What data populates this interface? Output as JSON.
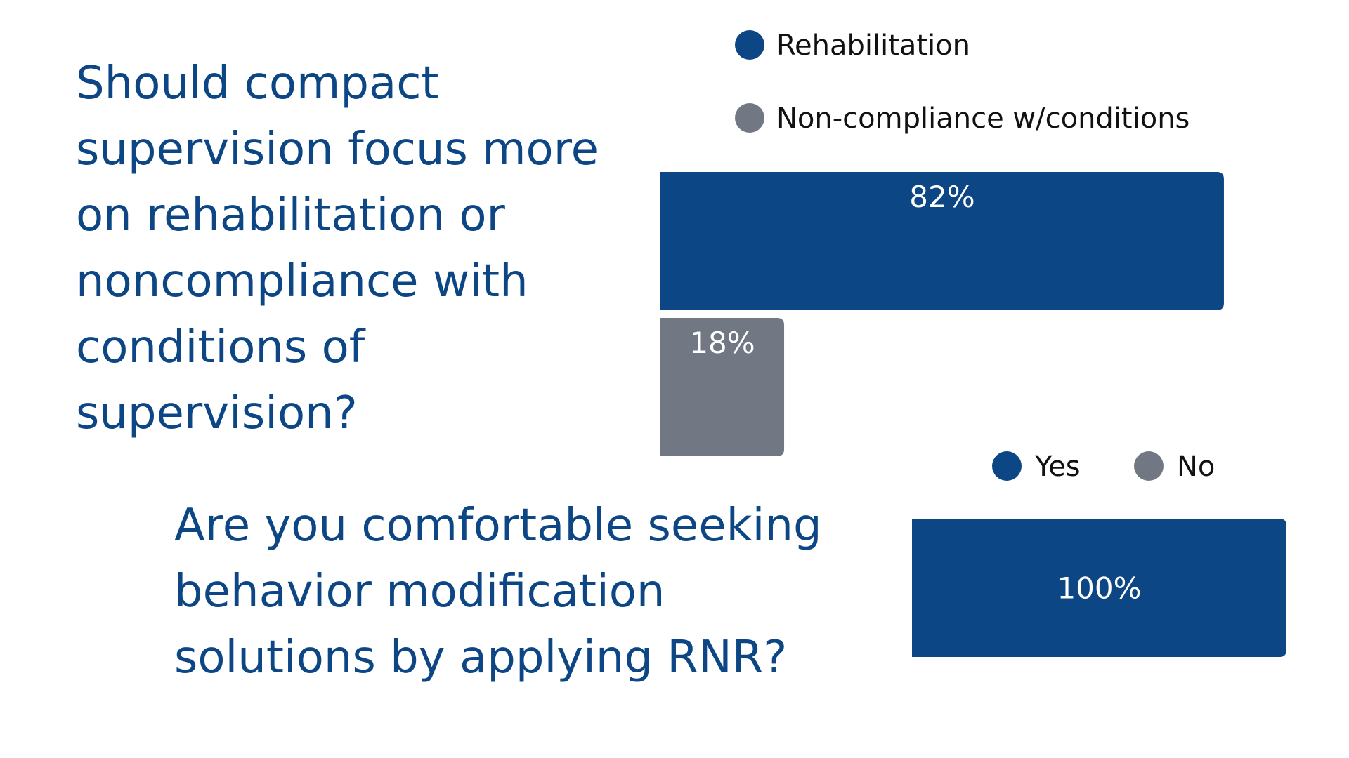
{
  "colors": {
    "primary": "#0d4684",
    "secondary": "#717783",
    "text": "#111111",
    "background": "#ffffff"
  },
  "chart_data": [
    {
      "type": "bar",
      "orientation": "horizontal",
      "question": [
        "Should compact",
        "supervision focus more",
        "on rehabilitation or",
        "noncompliance with",
        "conditions of",
        "supervision?"
      ],
      "series": [
        {
          "name": "Rehabilitation",
          "value": 82,
          "label": "82%",
          "color": "#0d4684"
        },
        {
          "name": "Non-compliance w/conditions",
          "value": 18,
          "label": "18%",
          "color": "#717783"
        }
      ],
      "xlim": [
        0,
        100
      ],
      "legend_position": "top",
      "grid": false
    },
    {
      "type": "bar",
      "orientation": "horizontal",
      "question": [
        "Are you comfortable seeking",
        "behavior modification",
        "solutions by applying RNR?"
      ],
      "series": [
        {
          "name": "Yes",
          "value": 100,
          "label": "100%",
          "color": "#0d4684"
        },
        {
          "name": "No",
          "value": 0,
          "label": "",
          "color": "#717783"
        }
      ],
      "xlim": [
        0,
        100
      ],
      "legend_position": "top",
      "grid": false
    }
  ]
}
